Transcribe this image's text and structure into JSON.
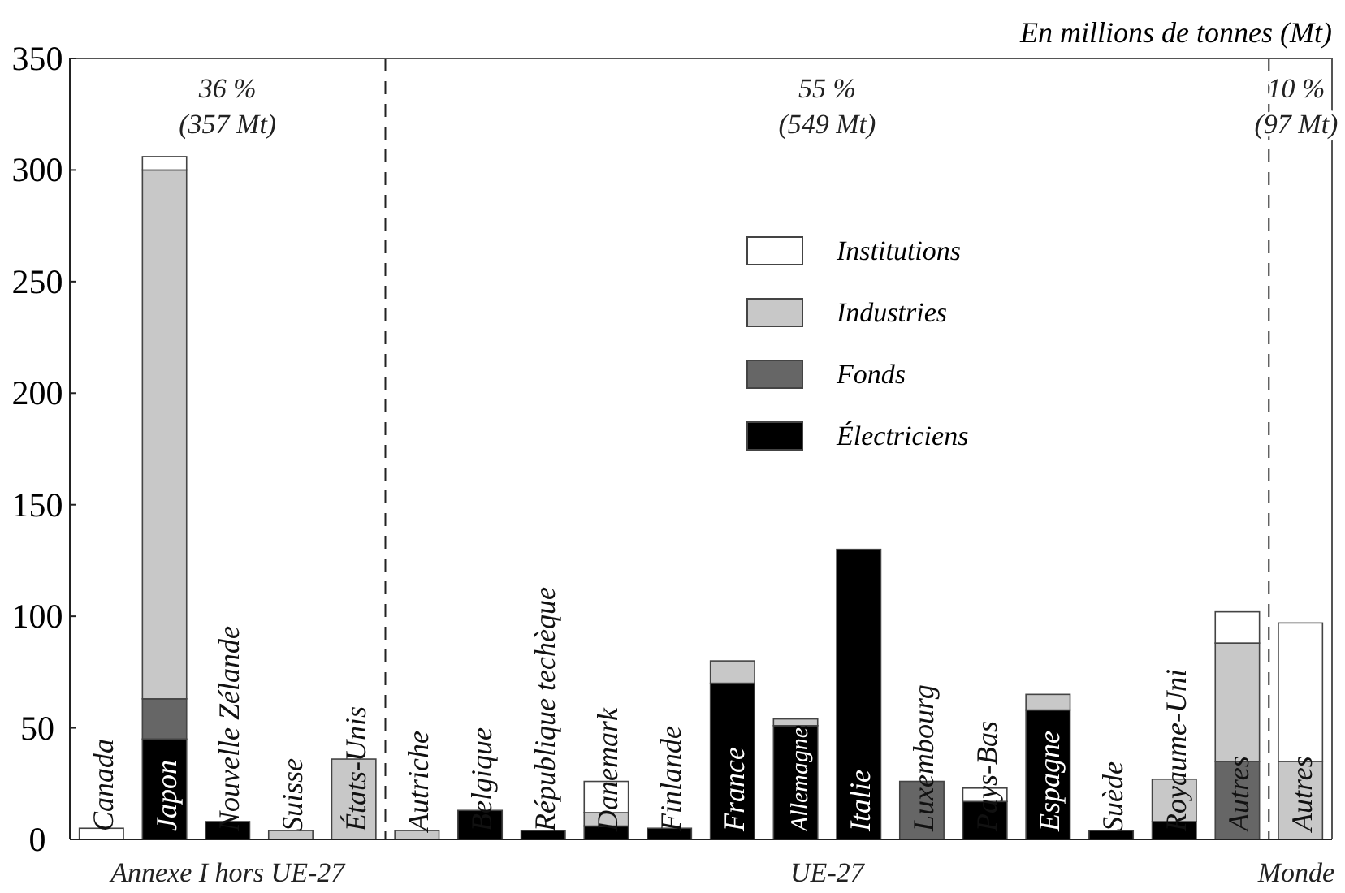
{
  "chart_data": {
    "type": "bar",
    "stacked": true,
    "ylabel": "En millions de tonnes (Mt)",
    "categories": [
      "Canada",
      "Japon",
      "Nouvelle Zélande",
      "Suisse",
      "États-Unis",
      "Autriche",
      "Belgique",
      "République techèque",
      "Danemark",
      "Finlande",
      "France",
      "Allemagne",
      "Italie",
      "Luxembourg",
      "Pays-Bas",
      "Espagne",
      "Suède",
      "Royaume-Uni",
      "Autres",
      "Autres"
    ],
    "series": [
      {
        "name": "Électriciens",
        "color": "#000000",
        "values": [
          0,
          45,
          8,
          0,
          0,
          0,
          13,
          4,
          6,
          5,
          70,
          51,
          130,
          0,
          17,
          58,
          4,
          8,
          0,
          0
        ]
      },
      {
        "name": "Fonds",
        "color": "#666666",
        "values": [
          0,
          18,
          0,
          0,
          0,
          0,
          0,
          0,
          0,
          0,
          0,
          0,
          0,
          26,
          0,
          0,
          0,
          0,
          35,
          0
        ]
      },
      {
        "name": "Industries",
        "color": "#c8c8c8",
        "values": [
          0,
          237,
          0,
          4,
          36,
          4,
          0,
          0,
          6,
          0,
          10,
          3,
          0,
          0,
          0,
          7,
          0,
          19,
          53,
          35
        ]
      },
      {
        "name": "Institutions",
        "color": "#ffffff",
        "values": [
          5,
          6,
          0,
          0,
          0,
          0,
          0,
          0,
          14,
          0,
          0,
          0,
          0,
          0,
          6,
          0,
          0,
          0,
          14,
          62
        ]
      }
    ],
    "ylim": [
      0,
      350
    ],
    "yticks": [
      0,
      50,
      100,
      150,
      200,
      250,
      300,
      350
    ],
    "annotations": [
      "36 %\n(357 Mt)",
      "55 %\n(549 Mt)",
      "10 %\n(97 Mt)",
      "Annexe I hors UE-27",
      "UE-27",
      "Monde"
    ],
    "legend": "top right",
    "grid": false
  }
}
